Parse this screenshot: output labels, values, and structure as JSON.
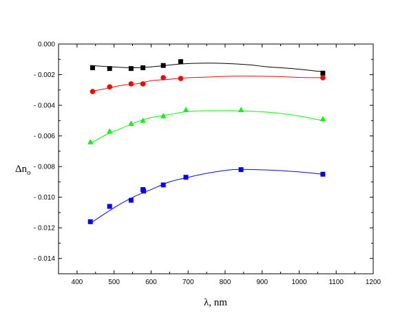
{
  "chart_data": {
    "type": "scatter",
    "title": "",
    "xlabel": "λ, nm",
    "ylabel": "Δn",
    "ylabel_sub": "o",
    "xlim": [
      350,
      1200
    ],
    "ylim": [
      -0.015,
      0.0
    ],
    "xticks": [
      400,
      500,
      600,
      700,
      800,
      900,
      1000,
      1100,
      1200
    ],
    "xtick_labels": [
      "400",
      "500",
      "600",
      "700",
      "800",
      "900",
      "1000",
      "1100",
      "1200"
    ],
    "yticks": [
      0.0,
      -0.002,
      -0.004,
      -0.006,
      -0.008,
      -0.01,
      -0.012,
      -0.014
    ],
    "ytick_labels": [
      "0.000",
      "- 0.002",
      "- 0.004",
      "- 0.006",
      "- 0.008",
      "- 0.010",
      "- 0.012",
      "- 0.014"
    ],
    "grid": false,
    "legend": "none",
    "series": [
      {
        "color": "#000000",
        "marker": "square",
        "x": [
          442,
          488,
          546,
          578,
          633,
          680,
          1064
        ],
        "y": [
          -0.00155,
          -0.0016,
          -0.0016,
          -0.00155,
          -0.0014,
          -0.00115,
          -0.0019
        ],
        "fit_x": [
          436,
          500,
          560,
          620,
          680,
          740,
          800,
          860,
          920,
          980,
          1040,
          1064
        ],
        "fit_y": [
          -0.0014,
          -0.0015,
          -0.00155,
          -0.00145,
          -0.0013,
          -0.00125,
          -0.00127,
          -0.00135,
          -0.0015,
          -0.0016,
          -0.00175,
          -0.0018
        ]
      },
      {
        "color": "#ff0000",
        "marker": "circle",
        "x": [
          442,
          488,
          546,
          578,
          633,
          680,
          1064
        ],
        "y": [
          -0.0031,
          -0.0028,
          -0.0026,
          -0.0026,
          -0.0022,
          -0.00225,
          -0.0022
        ],
        "fit_x": [
          436,
          480,
          520,
          560,
          600,
          650,
          700,
          760,
          820,
          880,
          940,
          1000,
          1064
        ],
        "fit_y": [
          -0.0031,
          -0.0029,
          -0.0027,
          -0.0026,
          -0.0024,
          -0.0023,
          -0.0022,
          -0.00215,
          -0.0021,
          -0.0021,
          -0.00212,
          -0.00218,
          -0.0022
        ]
      },
      {
        "color": "#00ff00",
        "marker": "triangle",
        "x": [
          436,
          488,
          546,
          578,
          633,
          694,
          843,
          1064
        ],
        "y": [
          -0.0064,
          -0.0057,
          -0.0052,
          -0.005,
          -0.0047,
          -0.0043,
          -0.0043,
          -0.0049
        ],
        "fit_x": [
          436,
          480,
          520,
          560,
          600,
          650,
          700,
          760,
          820,
          880,
          940,
          1000,
          1064
        ],
        "fit_y": [
          -0.0065,
          -0.0059,
          -0.0055,
          -0.0051,
          -0.0048,
          -0.0046,
          -0.0044,
          -0.00435,
          -0.00435,
          -0.0044,
          -0.0045,
          -0.0047,
          -0.005
        ]
      },
      {
        "color": "#0000ff",
        "marker": "square",
        "x": [
          436,
          488,
          546,
          578,
          580,
          633,
          694,
          843,
          1064
        ],
        "y": [
          -0.0116,
          -0.0106,
          -0.0102,
          -0.0095,
          -0.0096,
          -0.0092,
          -0.0087,
          -0.0082,
          -0.0085
        ],
        "fit_x": [
          436,
          480,
          520,
          560,
          600,
          650,
          700,
          760,
          820,
          880,
          940,
          1000,
          1064
        ],
        "fit_y": [
          -0.0117,
          -0.011,
          -0.0104,
          -0.0099,
          -0.0095,
          -0.009,
          -0.0087,
          -0.0084,
          -0.0082,
          -0.0082,
          -0.00825,
          -0.00835,
          -0.0085
        ]
      }
    ]
  }
}
